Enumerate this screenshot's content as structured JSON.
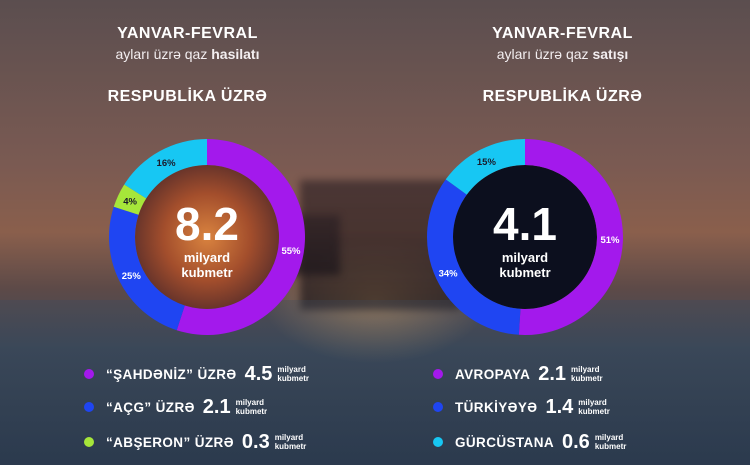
{
  "colors": {
    "purple": "#a319ec",
    "blue": "#1f45f2",
    "green": "#a6e63a",
    "cyan": "#17c7f3",
    "center_left": "#a34e2c",
    "center_right": "#0c0f1e"
  },
  "left": {
    "title": "YANVAR-FEVRAL",
    "subtitle_pre": "ayları üzrə qaz",
    "subtitle_bold": "hasilatı",
    "region": "RESPUBLİKA ÜZRƏ",
    "center_value": "8.2",
    "center_unit_line1": "milyard",
    "center_unit_line2": "kubmetr",
    "legend": [
      {
        "label": "“ŞAHDƏNİZ” ÜZRƏ",
        "value": "4.5",
        "unit1": "milyard",
        "unit2": "kubmetr",
        "color": "#a319ec"
      },
      {
        "label": "“AÇG” ÜZRƏ",
        "value": "2.1",
        "unit1": "milyard",
        "unit2": "kubmetr",
        "color": "#1f45f2"
      },
      {
        "label": "“ABŞERON” ÜZRƏ",
        "value": "0.3",
        "unit1": "milyard",
        "unit2": "kubmetr",
        "color": "#a6e63a"
      }
    ]
  },
  "right": {
    "title": "YANVAR-FEVRAL",
    "subtitle_pre": "ayları üzrə qaz",
    "subtitle_bold": "satışı",
    "region": "RESPUBLİKA ÜZRƏ",
    "center_value": "4.1",
    "center_unit_line1": "milyard",
    "center_unit_line2": "kubmetr",
    "legend": [
      {
        "label": "AVROPAYA",
        "value": "2.1",
        "unit1": "milyard",
        "unit2": "kubmetr",
        "color": "#a319ec"
      },
      {
        "label": "TÜRKİYƏYƏ",
        "value": "1.4",
        "unit1": "milyard",
        "unit2": "kubmetr",
        "color": "#1f45f2"
      },
      {
        "label": "GÜRCÜSTANA",
        "value": "0.6",
        "unit1": "milyard",
        "unit2": "kubmetr",
        "color": "#17c7f3"
      }
    ]
  },
  "chart_data": [
    {
      "type": "pie",
      "categories": [
        "ŞAHDƏNİZ",
        "AÇG",
        "ABŞERON",
        ""
      ],
      "values": [
        55,
        25,
        4,
        16
      ],
      "labels": [
        "55%",
        "25%",
        "4%",
        "16%"
      ],
      "colors": [
        "#a319ec",
        "#1f45f2",
        "#a6e63a",
        "#17c7f3"
      ],
      "start_angle_deg": 0,
      "direction": "clockwise",
      "donut": true,
      "center_text": "8.2 milyard kubmetr"
    },
    {
      "type": "pie",
      "categories": [
        "AVROPAYA",
        "TÜRKİYƏYƏ",
        "GÜRCÜSTANA"
      ],
      "values": [
        51,
        34,
        15
      ],
      "labels": [
        "51%",
        "34%",
        "15%"
      ],
      "colors": [
        "#a319ec",
        "#1f45f2",
        "#17c7f3"
      ],
      "start_angle_deg": 0,
      "direction": "clockwise",
      "donut": true,
      "center_text": "4.1 milyard kubmetr"
    }
  ]
}
